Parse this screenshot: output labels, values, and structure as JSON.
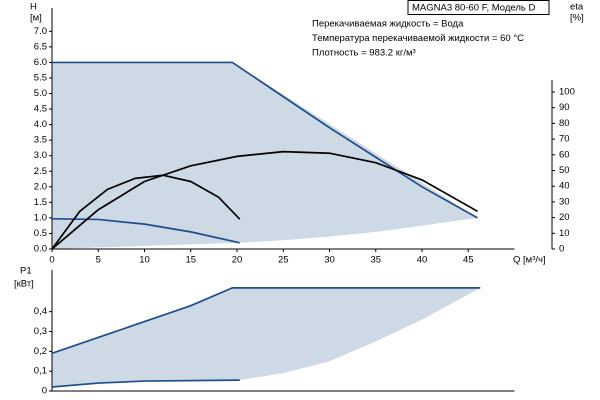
{
  "chart_data": [
    {
      "type": "line",
      "title": "MAGNA3 80-60 F, Модель D",
      "annotations": [
        "Перекачиваемая жидкость = Вода",
        "Температура перекачиваемой жидкости = 60 °C",
        "Плотность = 983.2 кг/м³"
      ],
      "ylabel": "H",
      "yunit": "[м]",
      "y2label": "eta",
      "y2unit": "[%]",
      "xlabel": "Q [м³/ч]",
      "xlim": [
        0,
        50
      ],
      "xticks": [
        0,
        5,
        10,
        15,
        20,
        25,
        30,
        35,
        40,
        45
      ],
      "ylim": [
        0,
        7.75
      ],
      "yticks": [
        {
          "value": 0,
          "label": "0.0"
        },
        0.5,
        {
          "value": 1,
          "label": "1.0"
        },
        1.5,
        {
          "value": 2,
          "label": "2.0"
        },
        2.5,
        {
          "value": 3,
          "label": "3.0"
        },
        3.5,
        {
          "value": 4,
          "label": "4.0"
        },
        4.5,
        {
          "value": 5,
          "label": "5.0"
        },
        5.5,
        {
          "value": 6,
          "label": "6.0"
        },
        6.5,
        {
          "value": 7,
          "label": "7.0"
        }
      ],
      "y2lim": [
        0,
        153.5
      ],
      "y2ticks": [
        0,
        10,
        20,
        30,
        40,
        50,
        60,
        70,
        80,
        90,
        100
      ],
      "areas": [
        {
          "color": "#cdd9e5",
          "x": [
            0,
            0,
            19.5,
            46,
            40,
            35,
            30,
            25,
            20.3
          ],
          "values": [
            0,
            6,
            6,
            1,
            0.75,
            0.55,
            0.4,
            0.28,
            0.2
          ]
        }
      ],
      "series": [
        {
          "color": "#1f4e8c",
          "x": [
            0,
            19.5,
            25,
            30,
            35,
            40,
            46
          ],
          "values": [
            6,
            6,
            4.9,
            3.9,
            2.95,
            2,
            1
          ]
        },
        {
          "color": "#1f4e8c",
          "x": [
            0,
            5,
            10,
            15,
            20.3
          ],
          "values": [
            0.97,
            0.95,
            0.8,
            0.55,
            0.2
          ]
        },
        {
          "color": "#000000",
          "axis": "y2",
          "x": [
            0,
            2,
            5,
            10,
            15,
            20,
            25,
            30,
            35,
            40,
            46
          ],
          "values": [
            0,
            10,
            25,
            43,
            53,
            59,
            62,
            61,
            55,
            44,
            24
          ]
        },
        {
          "color": "#000000",
          "axis": "y2",
          "x": [
            0,
            3,
            6,
            9,
            12,
            15,
            18,
            20.3
          ],
          "values": [
            0,
            24,
            38,
            45,
            47,
            43,
            33,
            19
          ]
        }
      ]
    },
    {
      "type": "line",
      "ylabel": "P1",
      "yunit": "[кВт]",
      "xlim": [
        0,
        50
      ],
      "ylim": [
        0,
        0.61
      ],
      "yticks": [
        0,
        {
          "value": 0.1,
          "label": "0,1"
        },
        {
          "value": 0.2,
          "label": "0,2"
        },
        {
          "value": 0.3,
          "label": "0,3"
        },
        {
          "value": 0.4,
          "label": "0,4"
        }
      ],
      "areas": [
        {
          "color": "#cdd9e5",
          "x": [
            0,
            5,
            10,
            15,
            19.5,
            46.3,
            40,
            35,
            30,
            25,
            20.3,
            10,
            0
          ],
          "values": [
            0.19,
            0.27,
            0.35,
            0.43,
            0.52,
            0.52,
            0.36,
            0.25,
            0.15,
            0.09,
            0.055,
            0.05,
            0.02
          ]
        }
      ],
      "series": [
        {
          "color": "#1f4e8c",
          "x": [
            0,
            5,
            10,
            15,
            19.5,
            46.3
          ],
          "values": [
            0.19,
            0.27,
            0.35,
            0.43,
            0.52,
            0.52
          ]
        },
        {
          "color": "#1f4e8c",
          "x": [
            0,
            5,
            10,
            20.3
          ],
          "values": [
            0.02,
            0.04,
            0.05,
            0.055
          ]
        }
      ]
    }
  ]
}
